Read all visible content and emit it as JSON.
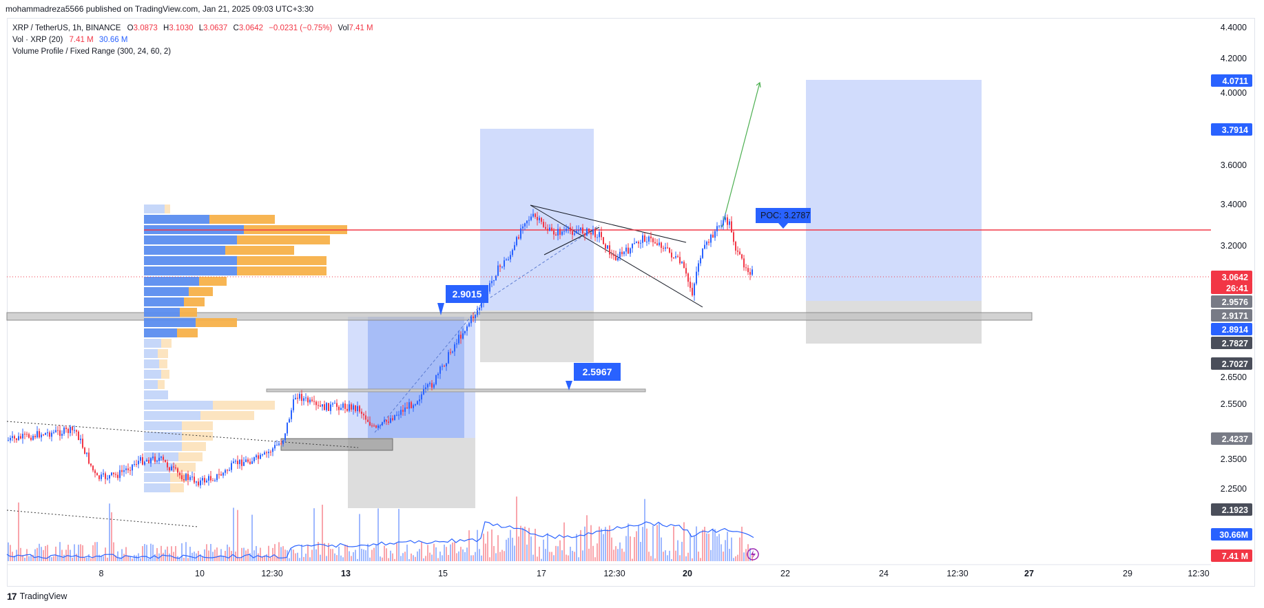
{
  "header": {
    "published_by": "mohammadreza5566 published on TradingView.com, Jan 21, 2025 09:03 UTC+3:30"
  },
  "legend": {
    "symbol": "XRP / TetherUS, 1h, BINANCE",
    "o_key": "O",
    "o_val": "3.0873",
    "h_key": "H",
    "h_val": "3.1030",
    "l_key": "L",
    "l_val": "3.0637",
    "c_key": "C",
    "c_val": "3.0642",
    "change": "−0.0231 (−0.75%)",
    "vol_key": "Vol",
    "vol_val": "7.41 M",
    "vol_indicator": "Vol · XRP (20)",
    "vol_a": "7.41 M",
    "vol_b": "30.66 M",
    "vp_indicator": "Volume Profile / Fixed Range (300, 24, 60, 2)"
  },
  "footer": {
    "logo": "17",
    "brand": "TradingView"
  },
  "colors": {
    "up": "#2962ff",
    "down": "#f23645",
    "poc_line": "#f23645",
    "zone_blue": "#c9d6fb",
    "zone_grey": "#d9d9d9",
    "vp_blue": "#5b8def",
    "vp_orange": "#f7b14a"
  },
  "chart_data": {
    "type": "candlestick",
    "price_axis_ticks": [
      "4.4000",
      "4.2000",
      "4.0000",
      "3.6000",
      "3.4000",
      "3.2000",
      "2.6500",
      "2.5500",
      "2.3500",
      "2.2500"
    ],
    "time_axis_ticks": [
      "8",
      "10",
      "12:30",
      "13",
      "15",
      "17",
      "12:30",
      "20",
      "22",
      "24",
      "12:30",
      "27",
      "29",
      "12:30"
    ],
    "price_tags": [
      {
        "value": "4.0711",
        "color": "#2962ff"
      },
      {
        "value": "3.7914",
        "color": "#2962ff"
      },
      {
        "value": "3.0642",
        "color": "#f23645"
      },
      {
        "value": "26:41",
        "color": "#f23645"
      },
      {
        "value": "2.9576",
        "color": "#787b86"
      },
      {
        "value": "2.9171",
        "color": "#787b86"
      },
      {
        "value": "2.8914",
        "color": "#2962ff"
      },
      {
        "value": "2.7827",
        "color": "#4a4e5a"
      },
      {
        "value": "2.7027",
        "color": "#4a4e5a"
      },
      {
        "value": "2.4237",
        "color": "#787b86"
      },
      {
        "value": "2.1923",
        "color": "#4a4e5a"
      },
      {
        "value": "30.66M",
        "color": "#2962ff"
      },
      {
        "value": "7.41 M",
        "color": "#f23645"
      }
    ],
    "annotations": {
      "callout_1": "2.9015",
      "callout_2": "2.5967",
      "poc_label": "POC: 3.2787"
    },
    "poc": 3.2787,
    "last_close": 3.0642,
    "key_levels": [
      2.9015,
      2.5967,
      2.4237
    ],
    "projection_target": 4.0711,
    "volume_avg": "30.66M",
    "volume_last": "7.41 M"
  }
}
